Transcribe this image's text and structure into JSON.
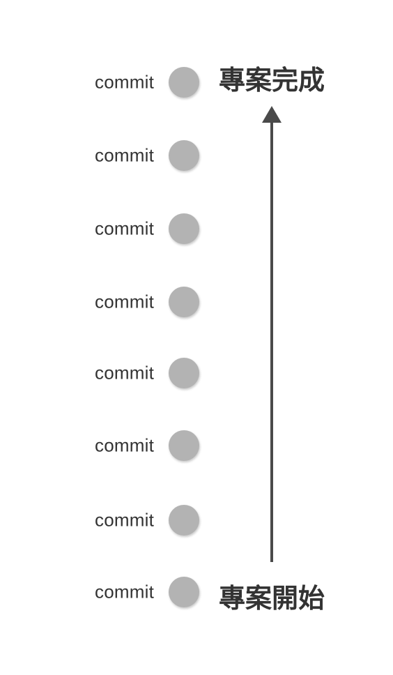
{
  "diagram": {
    "end_label": "專案完成",
    "start_label": "專案開始",
    "commits": [
      {
        "label": "commit"
      },
      {
        "label": "commit"
      },
      {
        "label": "commit"
      },
      {
        "label": "commit"
      },
      {
        "label": "commit"
      },
      {
        "label": "commit"
      },
      {
        "label": "commit"
      },
      {
        "label": "commit"
      }
    ],
    "colors": {
      "node": "#b3b3b3",
      "text": "#333333",
      "arrow": "#4a4a4a"
    }
  }
}
